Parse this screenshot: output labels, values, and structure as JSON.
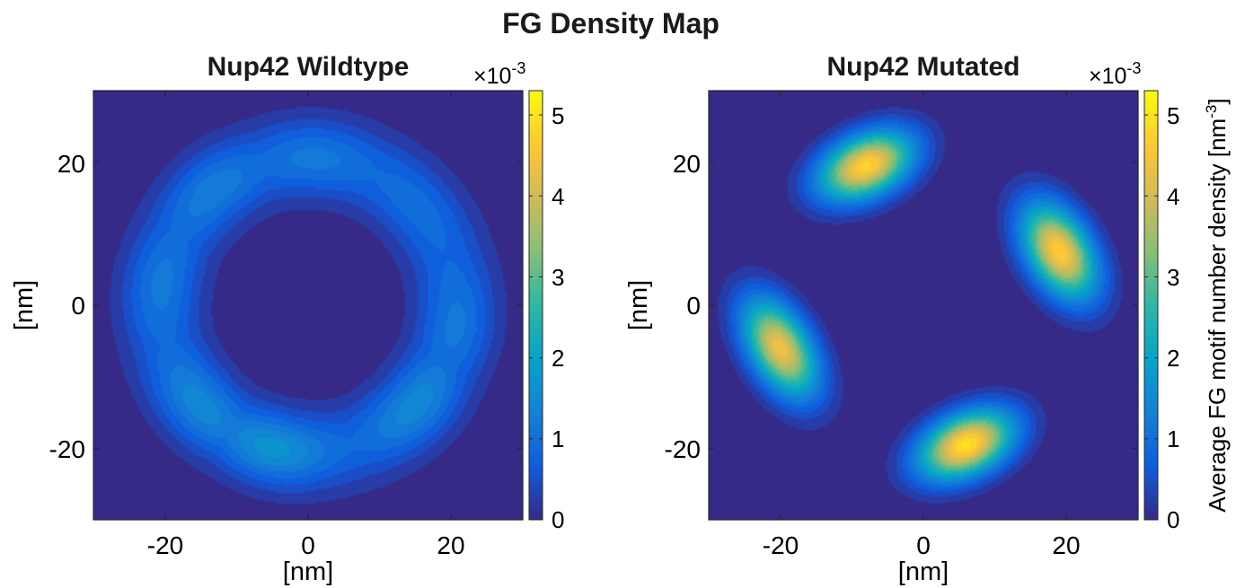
{
  "figure_title": "FG Density Map",
  "colormap": [
    "#352a87",
    "#0f5cdd",
    "#1481d6",
    "#06a4ca",
    "#2eb7a4",
    "#87bf77",
    "#d1bb59",
    "#fec832",
    "#f9fb0e"
  ],
  "chart_data": [
    {
      "type": "heatmap",
      "title": "Nup42 Wildtype",
      "xlabel": "[nm]",
      "ylabel": "[nm]",
      "xlim": [
        -30,
        30
      ],
      "ylim": [
        -30,
        30
      ],
      "xticks": [
        -20,
        0,
        20
      ],
      "yticks": [
        -20,
        0,
        20
      ],
      "tick_labels_x": [
        "-20",
        "0",
        "20"
      ],
      "tick_labels_y": [
        "20",
        "0",
        "-20"
      ],
      "shape": "ring",
      "ring": {
        "radius_nm": 20.5,
        "width_nm": 4.2,
        "base_density": 0.0012
      },
      "peaks": [
        {
          "x": 1,
          "y": 21,
          "density": 0.0013
        },
        {
          "x": -14,
          "y": 17,
          "density": 0.0014
        },
        {
          "x": 15,
          "y": 14,
          "density": 0.0011
        },
        {
          "x": -21,
          "y": 3,
          "density": 0.0013
        },
        {
          "x": 22,
          "y": -3,
          "density": 0.0013
        },
        {
          "x": -15,
          "y": -14,
          "density": 0.0016
        },
        {
          "x": -5,
          "y": -20,
          "density": 0.0018
        },
        {
          "x": 15,
          "y": -14,
          "density": 0.0016
        }
      ],
      "colorbar": {
        "ticks": [
          "0",
          "1",
          "2",
          "3",
          "4",
          "5"
        ],
        "tick_values": [
          0,
          1,
          2,
          3,
          4,
          5
        ],
        "range": [
          0,
          5.3
        ],
        "exponent_base": "×10",
        "exponent_power": "-3",
        "label": ""
      }
    },
    {
      "type": "heatmap",
      "title": "Nup42 Mutated",
      "xlabel": "[nm]",
      "ylabel": "[nm]",
      "xlim": [
        -30,
        30
      ],
      "ylim": [
        -30,
        30
      ],
      "xticks": [
        -20,
        0,
        20
      ],
      "yticks": [
        -20,
        0,
        20
      ],
      "tick_labels_x": [
        "-20",
        "0",
        "20"
      ],
      "tick_labels_y": [
        "20",
        "0",
        "-20"
      ],
      "shape": "blobs",
      "blobs": [
        {
          "x": -8,
          "y": 19.5,
          "peak_density": 0.0049,
          "orientation_deg": 25,
          "major_sd_nm": 4.8,
          "minor_sd_nm": 2.9
        },
        {
          "x": 19,
          "y": 7.5,
          "peak_density": 0.0048,
          "orientation_deg": -60,
          "major_sd_nm": 5.0,
          "minor_sd_nm": 3.0
        },
        {
          "x": -20,
          "y": -6,
          "peak_density": 0.0045,
          "orientation_deg": -60,
          "major_sd_nm": 5.2,
          "minor_sd_nm": 2.9
        },
        {
          "x": 6,
          "y": -19.5,
          "peak_density": 0.0051,
          "orientation_deg": 25,
          "major_sd_nm": 4.8,
          "minor_sd_nm": 2.9
        }
      ],
      "colorbar": {
        "ticks": [
          "0",
          "1",
          "2",
          "3",
          "4",
          "5"
        ],
        "tick_values": [
          0,
          1,
          2,
          3,
          4,
          5
        ],
        "range": [
          0,
          5.3
        ],
        "exponent_base": "×10",
        "exponent_power": "-3",
        "label_text": "Average FG motif number density [nm",
        "label_power": "-3",
        "label_close": "]"
      }
    }
  ]
}
